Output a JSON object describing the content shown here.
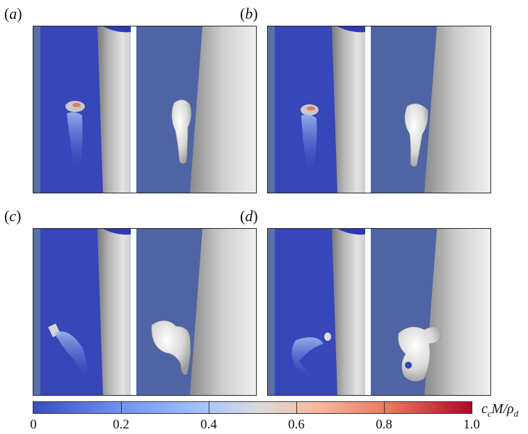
{
  "panels": [
    {
      "label": "(a)",
      "letter": "a"
    },
    {
      "label": "(b)",
      "letter": "b"
    },
    {
      "label": "(c)",
      "letter": "c"
    },
    {
      "label": "(d)",
      "letter": "d"
    }
  ],
  "colorbar": {
    "ticks": [
      "0",
      "0.2",
      "0.4",
      "0.6",
      "0.8",
      "1.0"
    ],
    "label": "c_cM/ρ_d",
    "label_parts": {
      "c": "c",
      "sub_c": "c",
      "m": "M/",
      "rho": "ρ",
      "sub_d": "d"
    },
    "colormap": "coolwarm",
    "min": 0,
    "max": 1.0
  }
}
